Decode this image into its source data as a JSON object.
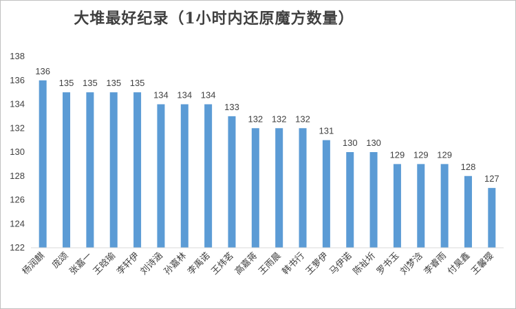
{
  "chart_data": {
    "type": "bar",
    "title": "大堆最好纪录（1小时内还原魔方数量）",
    "xlabel": "",
    "ylabel": "",
    "ylim": [
      122,
      138
    ],
    "yticks": [
      122,
      124,
      126,
      128,
      130,
      132,
      134,
      136,
      138
    ],
    "grid": false,
    "bar_color": "#5b9bd5",
    "categories": [
      "杨润麒",
      "庞颂",
      "张嘉一",
      "王晗瑜",
      "李轩伊",
      "刘诗涵",
      "孙嘉林",
      "李禹诺",
      "王炜茗",
      "高嘉蒋",
      "王雨晨",
      "韩书行",
      "王萝伊",
      "马伊诺",
      "陈祉圻",
      "罗书玉",
      "刘梦浛",
      "李睿雨",
      "付昊鑫",
      "王馨璎"
    ],
    "values": [
      136,
      135,
      135,
      135,
      135,
      134,
      134,
      134,
      133,
      132,
      132,
      132,
      131,
      130,
      130,
      129,
      129,
      129,
      128,
      127
    ]
  }
}
